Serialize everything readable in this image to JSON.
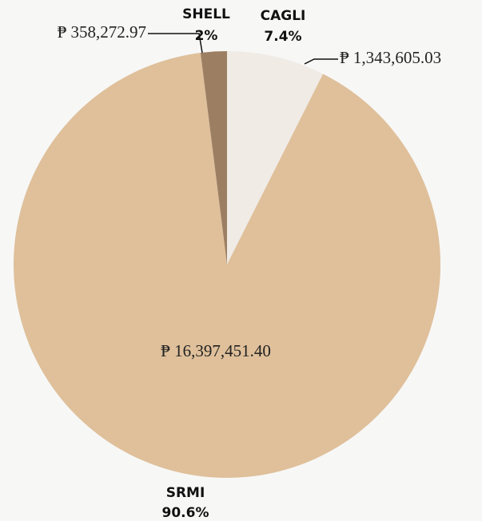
{
  "chart_data": {
    "type": "pie",
    "categories": [
      "CAGLI",
      "SRMI",
      "SHELL"
    ],
    "values": [
      1343605.03,
      16397451.4,
      358272.97
    ],
    "value_labels": [
      "₱ 1,343,605.03",
      "₱ 16,397,451.40",
      "₱ 358,272.97"
    ],
    "percentages": [
      7.4,
      90.6,
      2
    ],
    "percentage_labels": [
      "7.4%",
      "90.6%",
      "2%"
    ],
    "colors": [
      "#f0ebe5",
      "#dfc09a",
      "#9c7f62"
    ]
  }
}
